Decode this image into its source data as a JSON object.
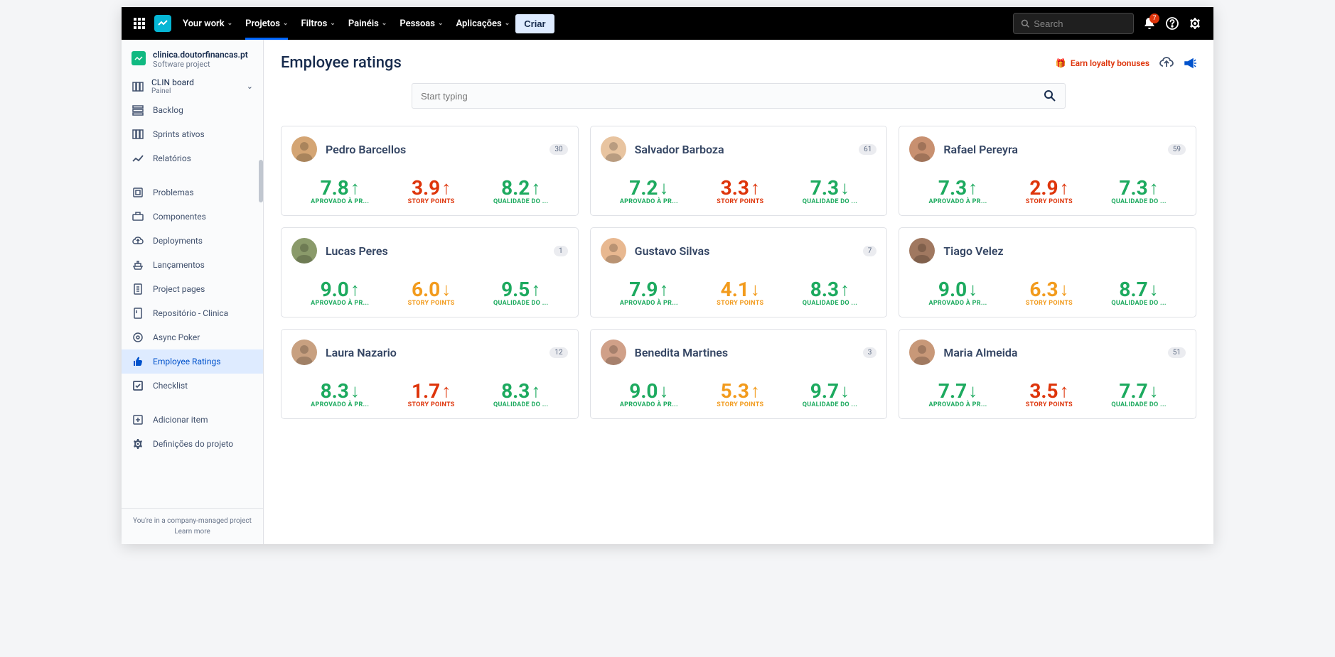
{
  "topbar": {
    "nav": [
      {
        "label": "Your work"
      },
      {
        "label": "Projetos"
      },
      {
        "label": "Filtros"
      },
      {
        "label": "Painéis"
      },
      {
        "label": "Pessoas"
      },
      {
        "label": "Aplicações"
      }
    ],
    "create": "Criar",
    "search_placeholder": "Search",
    "notif_count": "7"
  },
  "sidebar": {
    "project_name": "clinica.doutorfinancas.pt",
    "project_sub": "Software project",
    "board_name": "CLIN board",
    "board_sub": "Painel",
    "items": [
      {
        "label": "Backlog",
        "icon": "backlog"
      },
      {
        "label": "Sprints ativos",
        "icon": "columns"
      },
      {
        "label": "Relatórios",
        "icon": "chart"
      },
      {
        "label": "Problemas",
        "icon": "issues"
      },
      {
        "label": "Componentes",
        "icon": "component"
      },
      {
        "label": "Deployments",
        "icon": "cloud"
      },
      {
        "label": "Lançamentos",
        "icon": "ship"
      },
      {
        "label": "Project pages",
        "icon": "page"
      },
      {
        "label": "Repositório - Clinica",
        "icon": "repo"
      },
      {
        "label": "Async Poker",
        "icon": "poker"
      },
      {
        "label": "Employee Ratings",
        "icon": "thumb",
        "active": true
      },
      {
        "label": "Checklist",
        "icon": "check"
      },
      {
        "label": "Adicionar item",
        "icon": "add"
      },
      {
        "label": "Definições do projeto",
        "icon": "gear"
      }
    ],
    "footer1": "You're in a company-managed project",
    "footer2": "Learn more"
  },
  "page": {
    "title": "Employee ratings",
    "loyalty": "Earn loyalty bonuses",
    "search_placeholder": "Start typing"
  },
  "labels": {
    "aprovado": "APROVADO À PR...",
    "story": "STORY POINTS",
    "qualidade": "QUALIDADE DO ..."
  },
  "colors": {
    "green": "#1daa5f",
    "red": "#de350b",
    "orange": "#f29b1d"
  },
  "employees": [
    {
      "name": "Pedro Barcellos",
      "count": "30",
      "avatar": "#d4a574",
      "m1": {
        "v": "7.8",
        "dir": "up",
        "color": "green"
      },
      "m2": {
        "v": "3.9",
        "dir": "up",
        "color": "red"
      },
      "m3": {
        "v": "8.2",
        "dir": "up",
        "color": "green"
      }
    },
    {
      "name": "Salvador Barboza",
      "count": "61",
      "avatar": "#e8c4a0",
      "m1": {
        "v": "7.2",
        "dir": "down",
        "color": "green"
      },
      "m2": {
        "v": "3.3",
        "dir": "up",
        "color": "red"
      },
      "m3": {
        "v": "7.3",
        "dir": "down",
        "color": "green"
      }
    },
    {
      "name": "Rafael Pereyra",
      "count": "59",
      "avatar": "#c89070",
      "m1": {
        "v": "7.3",
        "dir": "up",
        "color": "green"
      },
      "m2": {
        "v": "2.9",
        "dir": "up",
        "color": "red"
      },
      "m3": {
        "v": "7.3",
        "dir": "up",
        "color": "green"
      }
    },
    {
      "name": "Lucas Peres",
      "count": "1",
      "avatar": "#8a9a6a",
      "m1": {
        "v": "9.0",
        "dir": "up",
        "color": "green"
      },
      "m2": {
        "v": "6.0",
        "dir": "down",
        "color": "orange"
      },
      "m3": {
        "v": "9.5",
        "dir": "up",
        "color": "green"
      }
    },
    {
      "name": "Gustavo Silvas",
      "count": "7",
      "avatar": "#e8b890",
      "m1": {
        "v": "7.9",
        "dir": "up",
        "color": "green"
      },
      "m2": {
        "v": "4.1",
        "dir": "down",
        "color": "orange"
      },
      "m3": {
        "v": "8.3",
        "dir": "up",
        "color": "green"
      }
    },
    {
      "name": "Tiago Velez",
      "count": "",
      "avatar": "#a07860",
      "m1": {
        "v": "9.0",
        "dir": "down",
        "color": "green"
      },
      "m2": {
        "v": "6.3",
        "dir": "down",
        "color": "orange"
      },
      "m3": {
        "v": "8.7",
        "dir": "down",
        "color": "green"
      }
    },
    {
      "name": "Laura Nazario",
      "count": "12",
      "avatar": "#c8a080",
      "m1": {
        "v": "8.3",
        "dir": "down",
        "color": "green"
      },
      "m2": {
        "v": "1.7",
        "dir": "up",
        "color": "red"
      },
      "m3": {
        "v": "8.3",
        "dir": "up",
        "color": "green"
      }
    },
    {
      "name": "Benedita Martines",
      "count": "3",
      "avatar": "#d0a088",
      "m1": {
        "v": "9.0",
        "dir": "down",
        "color": "green"
      },
      "m2": {
        "v": "5.3",
        "dir": "up",
        "color": "orange"
      },
      "m3": {
        "v": "9.7",
        "dir": "down",
        "color": "green"
      }
    },
    {
      "name": "Maria Almeida",
      "count": "51",
      "avatar": "#c89878",
      "m1": {
        "v": "7.7",
        "dir": "down",
        "color": "green"
      },
      "m2": {
        "v": "3.5",
        "dir": "up",
        "color": "red"
      },
      "m3": {
        "v": "7.7",
        "dir": "down",
        "color": "green"
      }
    }
  ]
}
